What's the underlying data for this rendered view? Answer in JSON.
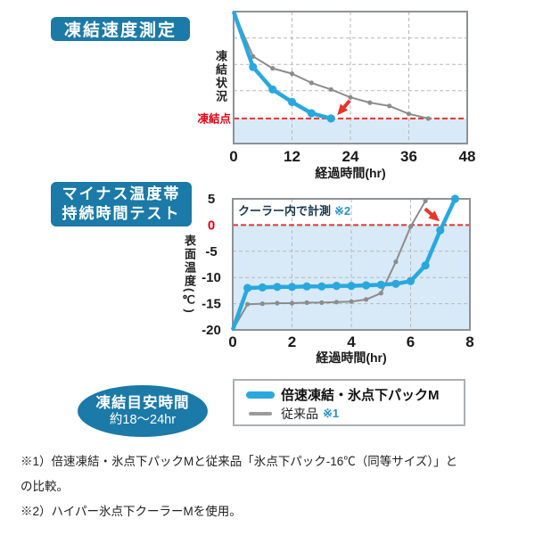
{
  "colors": {
    "badge_blue": "#1b7aa7",
    "series_blue": "#29a8df",
    "series_gray": "#8c8c8c",
    "red_line": "#e6352c",
    "red_text": "#e60012",
    "below_fill": "#d8eaf7",
    "grid": "#b8b8b8",
    "plot_border": "#8d9296",
    "text_dark": "#1a1a1a",
    "note_ref_blue": "#2a90c6"
  },
  "sections": {
    "freeze_speed": {
      "badge": "凍結速度測定"
    },
    "minus_temp": {
      "badge_line1": "マイナス温度帯",
      "badge_line2": "持続時間テスト"
    }
  },
  "chart_data": [
    {
      "id": "freeze-speed",
      "type": "line",
      "title": "凍結速度測定",
      "xlabel": "経過時間(hr)",
      "ylabel": "凍結状況",
      "x_range": [
        0,
        48
      ],
      "x_ticks": [
        0,
        12,
        24,
        36,
        48
      ],
      "y_range": [
        0,
        100
      ],
      "y_ticks": [],
      "grid_x": [
        12,
        24,
        36
      ],
      "grid_y": [
        80,
        60,
        40
      ],
      "legend_position": "below",
      "threshold": {
        "value": 19,
        "label": "凍結点"
      },
      "series": [
        {
          "name": "倍速凍結・氷点下パックM",
          "color_key": "blue",
          "points": [
            [
              0,
              100
            ],
            [
              4,
              58
            ],
            [
              8,
              41
            ],
            [
              12,
              31.5
            ],
            [
              16,
              23
            ],
            [
              20,
              19
            ]
          ]
        },
        {
          "name": "従来品",
          "color_key": "gray",
          "points": [
            [
              0,
              100
            ],
            [
              4,
              66
            ],
            [
              8,
              57
            ],
            [
              12,
              53
            ],
            [
              16,
              46
            ],
            [
              20,
              41
            ],
            [
              24,
              35
            ],
            [
              28,
              31
            ],
            [
              32,
              28.5
            ],
            [
              36,
              22.5
            ],
            [
              40,
              19
            ]
          ]
        }
      ],
      "arrow": {
        "series": 0,
        "point": 5
      }
    },
    {
      "id": "minus-temp",
      "type": "line",
      "title": "マイナス温度帯持続時間テスト",
      "xlabel": "経過時間(hr)",
      "ylabel": "表面温度(℃)",
      "annotation": {
        "text": "クーラー内で計測",
        "ref": "※2"
      },
      "x_range": [
        0,
        8
      ],
      "x_ticks": [
        0,
        2,
        4,
        6,
        8
      ],
      "y_range": [
        -20,
        5
      ],
      "y_ticks": [
        5,
        0,
        -5,
        -10,
        -15,
        -20
      ],
      "grid_x": [
        2,
        4,
        6
      ],
      "grid_y": [
        -5,
        -10,
        -15
      ],
      "threshold": {
        "value": 0
      },
      "series": [
        {
          "name": "倍速凍結・氷点下パックM",
          "color_key": "blue",
          "points": [
            [
              0,
              -20
            ],
            [
              0.5,
              -12
            ],
            [
              1,
              -11.9
            ],
            [
              1.5,
              -11.8
            ],
            [
              2,
              -11.8
            ],
            [
              2.5,
              -11.7
            ],
            [
              3,
              -11.7
            ],
            [
              3.5,
              -11.6
            ],
            [
              4,
              -11.6
            ],
            [
              4.5,
              -11.5
            ],
            [
              5,
              -11.4
            ],
            [
              5.5,
              -11.2
            ],
            [
              6,
              -10.7
            ],
            [
              6.5,
              -7.7
            ],
            [
              7,
              -1
            ],
            [
              7.5,
              5
            ]
          ]
        },
        {
          "name": "従来品",
          "color_key": "gray",
          "points": [
            [
              0,
              -20
            ],
            [
              0.5,
              -15.1
            ],
            [
              1,
              -15
            ],
            [
              1.5,
              -14.9
            ],
            [
              2,
              -14.9
            ],
            [
              2.5,
              -14.8
            ],
            [
              3,
              -14.8
            ],
            [
              3.5,
              -14.7
            ],
            [
              4,
              -14.6
            ],
            [
              4.5,
              -14.2
            ],
            [
              5,
              -13
            ],
            [
              5.5,
              -7
            ],
            [
              6,
              -0.3
            ],
            [
              6.5,
              4.6
            ]
          ],
          "line_extend": [
            6.65,
            5.6
          ]
        }
      ],
      "arrow": {
        "series": 0,
        "point": 14
      }
    }
  ],
  "freeze_badge": {
    "line1": "凍結目安時間",
    "line2": "約18〜24hr"
  },
  "legend": {
    "items": [
      {
        "label": "倍速凍結・氷点下パックM",
        "ref": "",
        "color_key": "blue"
      },
      {
        "label": "従来品",
        "ref": "※1",
        "color_key": "gray"
      }
    ]
  },
  "footnotes": [
    "※1）倍速凍結・氷点下パックMと従来品「氷点下パック-16℃（同等サイズ）」と",
    "の比較。",
    "※2）ハイパー氷点下クーラーMを使用。"
  ]
}
